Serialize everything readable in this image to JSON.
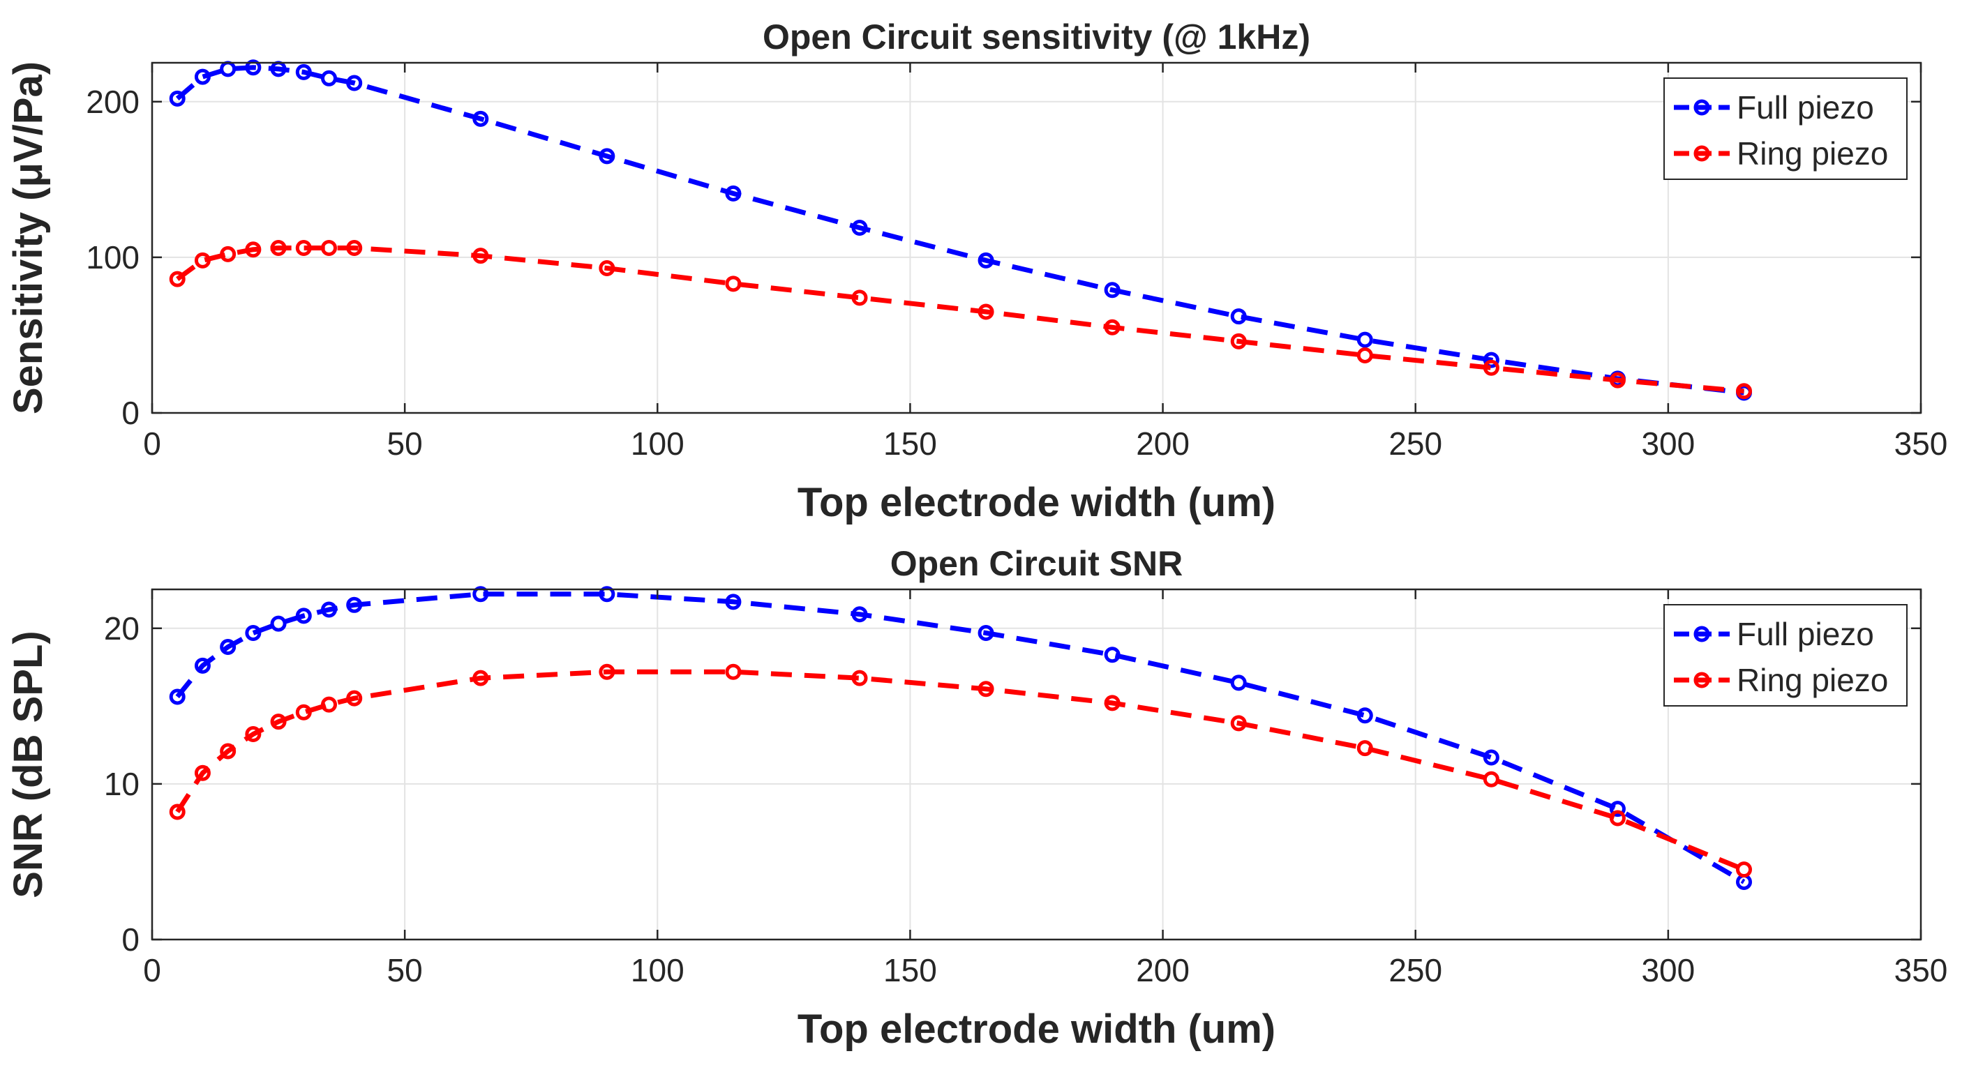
{
  "chart_data": [
    {
      "type": "line",
      "title": "Open Circuit sensitivity (@ 1kHz)",
      "xlabel": "Top electrode width (um)",
      "ylabel": "Sensitivity (μV/Pa)",
      "xlim": [
        0,
        350
      ],
      "ylim": [
        0,
        225
      ],
      "xticks": [
        0,
        50,
        100,
        150,
        200,
        250,
        300,
        350
      ],
      "yticks": [
        0,
        100,
        200
      ],
      "grid": true,
      "legend_position": "top-right",
      "x": [
        5,
        10,
        15,
        20,
        25,
        30,
        35,
        40,
        65,
        90,
        115,
        140,
        165,
        190,
        215,
        240,
        265,
        290,
        315
      ],
      "series": [
        {
          "name": "Full piezo",
          "color": "#0000ff",
          "marker": "circle",
          "line_style": "dashed",
          "values": [
            202,
            216,
            221,
            222,
            221,
            219,
            215,
            212,
            189,
            165,
            141,
            119,
            98,
            79,
            62,
            47,
            34,
            22,
            13
          ]
        },
        {
          "name": "Ring piezo",
          "color": "#ff0000",
          "marker": "circle",
          "line_style": "dashed",
          "values": [
            86,
            98,
            102,
            105,
            106,
            106,
            106,
            106,
            101,
            93,
            83,
            74,
            65,
            55,
            46,
            37,
            29,
            21,
            14
          ]
        }
      ]
    },
    {
      "type": "line",
      "title": "Open Circuit SNR",
      "xlabel": "Top electrode width (um)",
      "ylabel": "SNR (dB SPL)",
      "xlim": [
        0,
        350
      ],
      "ylim": [
        0,
        22.5
      ],
      "xticks": [
        0,
        50,
        100,
        150,
        200,
        250,
        300,
        350
      ],
      "yticks": [
        0,
        10,
        20
      ],
      "grid": true,
      "legend_position": "top-right",
      "x": [
        5,
        10,
        15,
        20,
        25,
        30,
        35,
        40,
        65,
        90,
        115,
        140,
        165,
        190,
        215,
        240,
        265,
        290,
        315
      ],
      "series": [
        {
          "name": "Full piezo",
          "color": "#0000ff",
          "marker": "circle",
          "line_style": "dashed",
          "values": [
            15.6,
            17.6,
            18.8,
            19.7,
            20.3,
            20.8,
            21.2,
            21.5,
            22.2,
            22.2,
            21.7,
            20.9,
            19.7,
            18.3,
            16.5,
            14.4,
            11.7,
            8.4,
            3.7
          ]
        },
        {
          "name": "Ring piezo",
          "color": "#ff0000",
          "marker": "circle",
          "line_style": "dashed",
          "values": [
            8.2,
            10.7,
            12.1,
            13.2,
            14.0,
            14.6,
            15.1,
            15.5,
            16.8,
            17.2,
            17.2,
            16.8,
            16.1,
            15.2,
            13.9,
            12.3,
            10.3,
            7.8,
            4.5
          ]
        }
      ]
    }
  ]
}
